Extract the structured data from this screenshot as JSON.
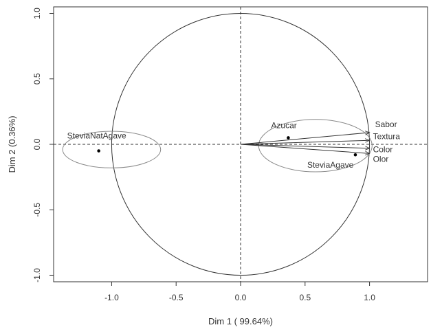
{
  "chart_data": {
    "type": "scatter",
    "title": "",
    "xlabel": "Dim 1 ( 99.64%)",
    "ylabel": "Dim 2 (0.36%)",
    "xlim": [
      -1.45,
      1.45
    ],
    "ylim": [
      -1.05,
      1.05
    ],
    "xticks": [
      -1.0,
      -0.5,
      0.0,
      0.5,
      1.0
    ],
    "xtick_labels": [
      "-1.0",
      "-0.5",
      "0.0",
      "0.5",
      "1.0"
    ],
    "yticks": [
      -1.0,
      -0.5,
      0.0,
      0.5,
      1.0
    ],
    "ytick_labels": [
      "-1.0",
      "-0.5",
      "0.0",
      "0.5",
      "1.0"
    ],
    "unit_circle": true,
    "reference_lines": [
      "x=0 dashed",
      "y=0 dashed"
    ],
    "grid": false,
    "vectors": [
      {
        "label": "Sabor",
        "x": 1.0,
        "y": 0.09
      },
      {
        "label": "Textura",
        "x": 1.0,
        "y": 0.03
      },
      {
        "label": "Color",
        "x": 1.0,
        "y": -0.03
      },
      {
        "label": "Olor",
        "x": 1.0,
        "y": -0.07
      }
    ],
    "points": [
      {
        "label": "Azucar",
        "x": 0.37,
        "y": 0.05
      },
      {
        "label": "SteviaAgave",
        "x": 0.89,
        "y": -0.08
      },
      {
        "label": "SteviaNatAgave",
        "x": -1.1,
        "y": -0.05
      }
    ],
    "ellipses": [
      {
        "cx": -1.0,
        "cy": -0.04,
        "rx": 0.38,
        "ry": 0.14
      },
      {
        "cx": 0.58,
        "cy": -0.01,
        "rx": 0.44,
        "ry": 0.2
      }
    ],
    "colors": {
      "axes": "#333333",
      "circle": "#333333",
      "ellipse": "#888888",
      "vector": "#333333",
      "point": "#000000"
    }
  }
}
